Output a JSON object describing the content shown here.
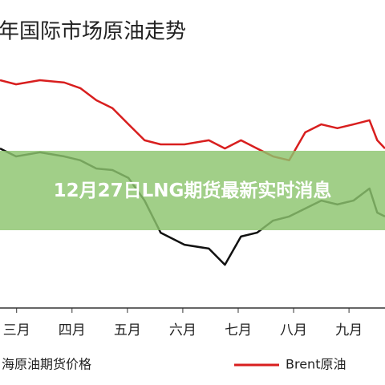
{
  "chart_data": {
    "type": "line",
    "title": "年国际市场原油走势",
    "x": [
      2.7,
      2.99,
      3.42,
      3.86,
      4.15,
      4.44,
      4.73,
      5.02,
      5.31,
      5.6,
      6.03,
      6.47,
      6.76,
      7.05,
      7.34,
      7.63,
      7.92,
      8.21,
      8.5,
      8.79,
      9.08,
      9.37,
      9.51,
      9.65
    ],
    "series": [
      {
        "name": "海原油期货价格",
        "color": "#111111",
        "values": [
          60.9,
          57.8,
          59.4,
          57.8,
          56.3,
          53.1,
          52.5,
          49.4,
          40.6,
          28.1,
          23.4,
          21.9,
          15.6,
          26.6,
          28.1,
          32.8,
          34.4,
          37.5,
          40.6,
          39.1,
          40.6,
          45.3,
          35.9,
          34.4
        ]
      },
      {
        "name": "Brent原油",
        "color": "#d81e1e",
        "values": [
          87.5,
          85.9,
          87.5,
          86.6,
          84.4,
          79.7,
          76.6,
          70.3,
          64.1,
          62.5,
          62.5,
          64.1,
          60.9,
          64.1,
          60.9,
          57.8,
          56.3,
          67.2,
          70.3,
          68.8,
          70.3,
          71.9,
          64.1,
          60.9
        ]
      }
    ],
    "xlim": [
      2.7,
      9.65
    ],
    "xticks": [
      {
        "value": 3,
        "label": "三月"
      },
      {
        "value": 4,
        "label": "四月"
      },
      {
        "value": 5,
        "label": "五月"
      },
      {
        "value": 6,
        "label": "六月"
      },
      {
        "value": 7,
        "label": "七月"
      },
      {
        "value": 8,
        "label": "八月"
      },
      {
        "value": 9,
        "label": "九月"
      }
    ],
    "ylim": [
      0,
      100
    ]
  },
  "banner": {
    "title": "12月27日LNG期货最新实时消息"
  }
}
